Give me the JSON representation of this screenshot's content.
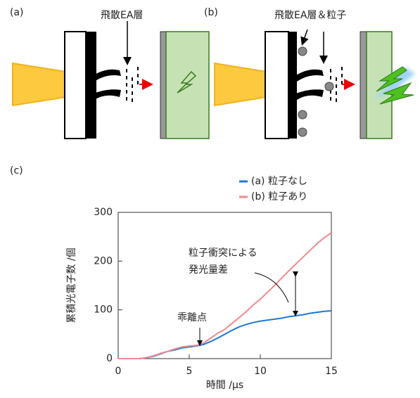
{
  "panels": {
    "a": {
      "label": "(a)",
      "caption": "飛散EA層"
    },
    "b": {
      "label": "(b)",
      "caption": "飛散EA層＆粒子"
    },
    "c": {
      "label": "(c)"
    }
  },
  "chart_data": {
    "type": "line",
    "x_label": "時間 /μs",
    "y_label": "累積光電子数 /個",
    "x": [
      0,
      0.5,
      1,
      1.5,
      2,
      2.5,
      3,
      3.5,
      4,
      4.5,
      5,
      5.5,
      6,
      6.5,
      7,
      7.5,
      8,
      8.5,
      9,
      9.5,
      10,
      10.5,
      11,
      11.5,
      12,
      12.5,
      13,
      13.5,
      14,
      14.5,
      15
    ],
    "series": [
      {
        "name": "(a) 粒子なし",
        "color": "#1f77d4",
        "values": [
          0,
          0,
          0,
          0,
          2,
          5,
          10,
          15,
          18,
          22,
          24,
          26,
          29,
          35,
          42,
          50,
          58,
          65,
          70,
          74,
          77,
          79,
          81,
          83,
          86,
          88,
          90,
          93,
          95,
          97,
          98
        ]
      },
      {
        "name": "(b) 粒子あり",
        "color": "#f08a8e",
        "values": [
          0,
          0,
          0,
          0,
          2,
          6,
          11,
          15,
          20,
          24,
          26,
          27,
          32,
          42,
          52,
          60,
          72,
          84,
          96,
          110,
          122,
          136,
          150,
          165,
          180,
          194,
          208,
          222,
          236,
          248,
          258
        ]
      }
    ],
    "xlim": [
      0,
      15
    ],
    "xticks": [
      0,
      5,
      10,
      15
    ],
    "ylim": [
      0,
      300
    ],
    "yticks": [
      0,
      100,
      200,
      300
    ],
    "annotations": [
      "粒子衝突による",
      "発光量差",
      "乖離点"
    ]
  }
}
